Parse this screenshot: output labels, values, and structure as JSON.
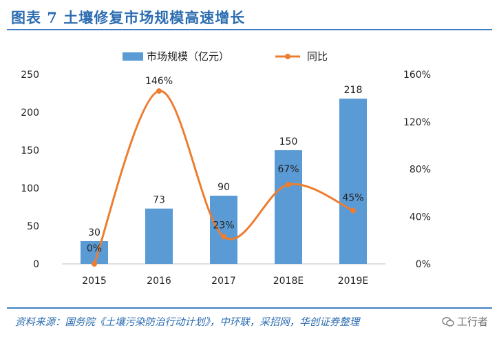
{
  "header": {
    "title": "图表 7   土壤修复市场规模高速增长"
  },
  "chart_data": {
    "type": "bar+line",
    "categories": [
      "2015",
      "2016",
      "2017",
      "2018E",
      "2019E"
    ],
    "series": [
      {
        "name": "市场规模（亿元）",
        "type": "bar",
        "axis": "left",
        "values": [
          30,
          73,
          90,
          150,
          218
        ],
        "labels": [
          "30",
          "73",
          "90",
          "150",
          "218"
        ]
      },
      {
        "name": "同比",
        "type": "line",
        "axis": "right",
        "values": [
          0,
          146,
          23,
          67,
          45
        ],
        "labels": [
          "0%",
          "146%",
          "23%",
          "67%",
          "45%"
        ]
      }
    ],
    "y_left": {
      "ticks": [
        "0",
        "50",
        "100",
        "150",
        "200",
        "250"
      ],
      "lim": [
        0,
        250
      ]
    },
    "y_right": {
      "ticks": [
        "0%",
        "40%",
        "80%",
        "120%",
        "160%"
      ],
      "lim": [
        0,
        160
      ]
    },
    "legend_position": "top-center",
    "colors": {
      "bar": "#5b9bd5",
      "line": "#ed7d31"
    }
  },
  "footer": {
    "source": "资料来源：国务院《土壤污染防治行动计划》，中环联，采招网，华创证券整理"
  },
  "watermark": {
    "text": "工行者"
  }
}
